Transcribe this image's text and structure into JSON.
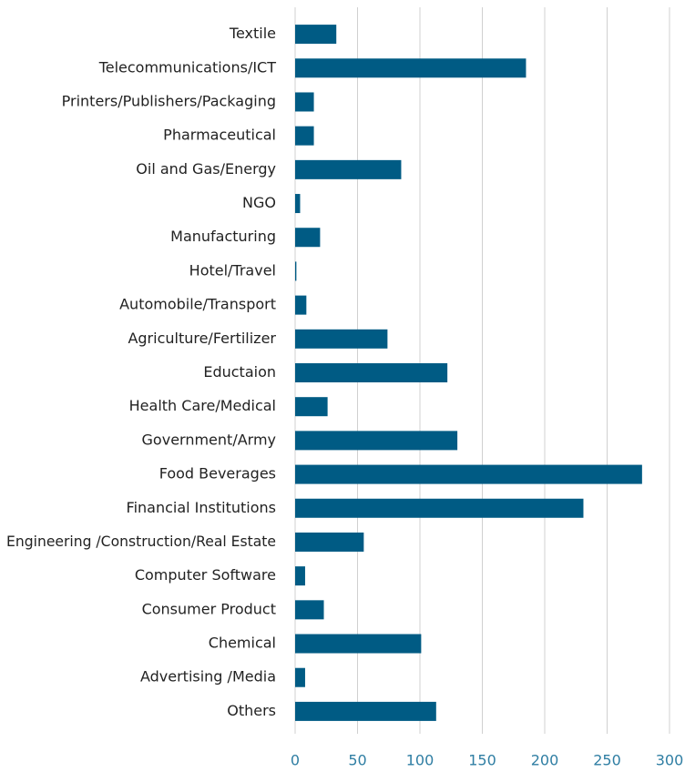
{
  "chart_data": {
    "type": "barh",
    "categories": [
      "Textile",
      "Telecommunications/ICT",
      "Printers/Publishers/Packaging",
      "Pharmaceutical",
      "Oil and Gas/Energy",
      "NGO",
      "Manufacturing",
      "Hotel/Travel",
      "Automobile/Transport",
      "Agriculture/Fertilizer",
      "Eductaion",
      "Health Care/Medical",
      "Government/Army",
      "Food Beverages",
      "Financial Institutions",
      "Engineering /Construction/Real Estate",
      "Computer Software",
      "Consumer Product",
      "Chemical",
      "Advertising /Media",
      "Others"
    ],
    "values": [
      33,
      185,
      15,
      15,
      85,
      4,
      20,
      1,
      9,
      74,
      122,
      26,
      130,
      278,
      231,
      55,
      8,
      23,
      101,
      8,
      113
    ],
    "color": "#005b84",
    "xlim": [
      0,
      300
    ],
    "xticks": [
      0,
      50,
      100,
      150,
      200,
      250,
      300
    ],
    "grid": true
  }
}
